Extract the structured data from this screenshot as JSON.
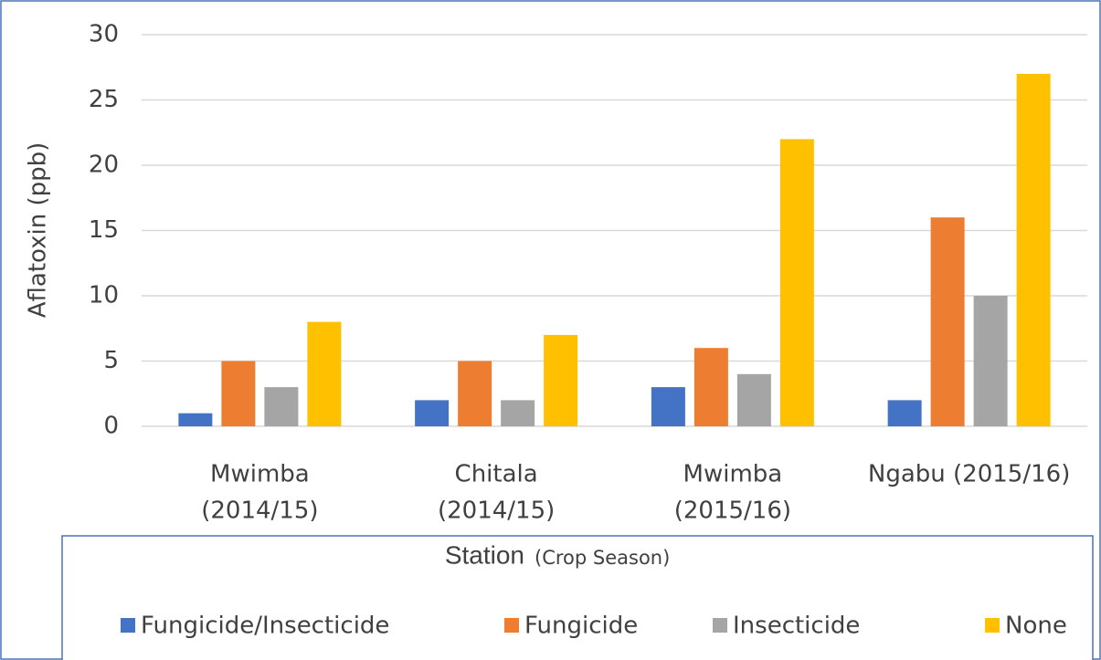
{
  "chart_data": {
    "type": "bar",
    "y_label": "Aflatoxin (ppb)",
    "x_label": "Station",
    "x_label_note": "(Crop Season)",
    "categories": [
      [
        "Mwimba",
        "(2014/15)"
      ],
      [
        "Chitala",
        "(2014/15)"
      ],
      [
        "Mwimba",
        "(2015/16)"
      ],
      [
        "Ngabu (2015/16)"
      ]
    ],
    "series": [
      {
        "name": "Fungicide/Insecticide",
        "color": "#4472c4",
        "values": [
          1,
          2,
          3,
          2
        ]
      },
      {
        "name": "Fungicide",
        "color": "#ed7d31",
        "values": [
          5,
          5,
          6,
          16
        ]
      },
      {
        "name": "Insecticide",
        "color": "#a5a5a5",
        "values": [
          3,
          2,
          4,
          10
        ]
      },
      {
        "name": "None",
        "color": "#ffc000",
        "values": [
          8,
          7,
          22,
          27
        ]
      }
    ],
    "ylim": [
      0,
      30
    ],
    "yticks": [
      0,
      5,
      10,
      15,
      20,
      25,
      30
    ],
    "grid": true,
    "legend": "bottom"
  }
}
